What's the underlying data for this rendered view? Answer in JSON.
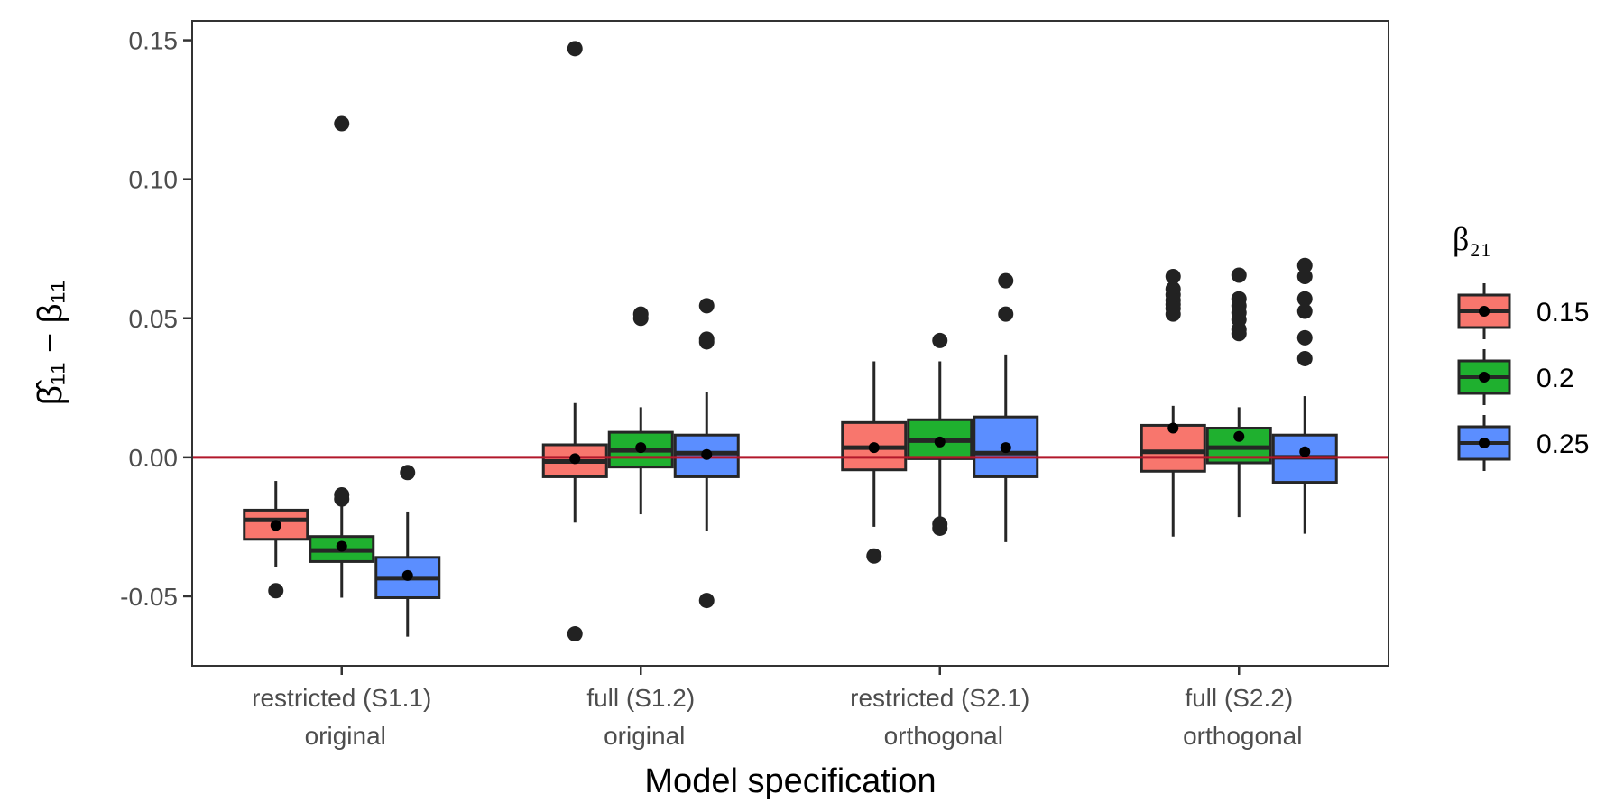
{
  "chart_data": {
    "type": "boxplot",
    "xlabel": "Model specification",
    "ylabel": "β̂₁₁ − β₁₁",
    "ylim": [
      -0.075,
      0.157
    ],
    "yticks": [
      -0.05,
      0.0,
      0.05,
      0.1,
      0.15
    ],
    "ytick_labels": [
      "-0.05",
      "0.00",
      "0.05",
      "0.10",
      "0.15"
    ],
    "categories": [
      {
        "line1": "restricted (S1.1)",
        "line2": "original"
      },
      {
        "line1": "full (S1.2)",
        "line2": "original"
      },
      {
        "line1": "restricted (S2.1)",
        "line2": "orthogonal"
      },
      {
        "line1": "full (S2.2)",
        "line2": "orthogonal"
      }
    ],
    "reference_line": {
      "y": 0.0,
      "color": "#b2182b"
    },
    "grid": false,
    "legend": {
      "title": "β₂₁",
      "placement": "right",
      "entries": [
        {
          "label": "0.15",
          "color": "#f8766d"
        },
        {
          "label": "0.2",
          "color": "#1fb02f"
        },
        {
          "label": "0.25",
          "color": "#5b8eff"
        }
      ]
    },
    "series": [
      {
        "legend_label": "0.15",
        "color": "#f8766d",
        "boxes": [
          {
            "whisker_low": -0.0395,
            "q1": -0.0295,
            "median": -0.0225,
            "q3": -0.019,
            "whisker_high": -0.0085,
            "mean": -0.0245,
            "outliers": [
              -0.048
            ]
          },
          {
            "whisker_low": -0.0235,
            "q1": -0.007,
            "median": -0.0015,
            "q3": 0.0045,
            "whisker_high": 0.0195,
            "mean": -0.0005,
            "outliers": [
              0.147,
              -0.0635
            ]
          },
          {
            "whisker_low": -0.025,
            "q1": -0.0045,
            "median": 0.0035,
            "q3": 0.0125,
            "whisker_high": 0.0345,
            "mean": 0.0035,
            "outliers": [
              -0.0355
            ]
          },
          {
            "whisker_low": -0.0285,
            "q1": -0.005,
            "median": 0.002,
            "q3": 0.0115,
            "whisker_high": 0.0185,
            "mean": 0.0105,
            "outliers": [
              0.065,
              0.0605,
              0.0585,
              0.0565,
              0.055,
              0.0535,
              0.0515
            ]
          }
        ]
      },
      {
        "legend_label": "0.2",
        "color": "#1fb02f",
        "boxes": [
          {
            "whisker_low": -0.0505,
            "q1": -0.0375,
            "median": -0.0335,
            "q3": -0.0285,
            "whisker_high": -0.0175,
            "mean": -0.032,
            "outliers": [
              0.12,
              -0.0135,
              -0.015
            ]
          },
          {
            "whisker_low": -0.0205,
            "q1": -0.0035,
            "median": 0.0025,
            "q3": 0.009,
            "whisker_high": 0.018,
            "mean": 0.0035,
            "outliers": [
              0.0515,
              0.05
            ]
          },
          {
            "whisker_low": -0.023,
            "q1": -0.0005,
            "median": 0.006,
            "q3": 0.0135,
            "whisker_high": 0.0345,
            "mean": 0.0055,
            "outliers": [
              0.042,
              -0.024,
              -0.0255
            ]
          },
          {
            "whisker_low": -0.0215,
            "q1": -0.002,
            "median": 0.0035,
            "q3": 0.0105,
            "whisker_high": 0.018,
            "mean": 0.0075,
            "outliers": [
              0.0655,
              0.057,
              0.0545,
              0.052,
              0.0495,
              0.046,
              0.0445
            ]
          }
        ]
      },
      {
        "legend_label": "0.25",
        "color": "#5b8eff",
        "boxes": [
          {
            "whisker_low": -0.0645,
            "q1": -0.0505,
            "median": -0.0435,
            "q3": -0.036,
            "whisker_high": -0.0195,
            "mean": -0.0425,
            "outliers": [
              -0.0055
            ]
          },
          {
            "whisker_low": -0.0265,
            "q1": -0.007,
            "median": 0.0015,
            "q3": 0.008,
            "whisker_high": 0.0235,
            "mean": 0.001,
            "outliers": [
              0.0545,
              0.0425,
              0.0415,
              -0.0515
            ]
          },
          {
            "whisker_low": -0.0305,
            "q1": -0.007,
            "median": 0.0015,
            "q3": 0.0145,
            "whisker_high": 0.037,
            "mean": 0.0035,
            "outliers": [
              0.0635,
              0.0515
            ]
          },
          {
            "whisker_low": -0.0275,
            "q1": -0.009,
            "median": 0.0,
            "q3": 0.008,
            "whisker_high": 0.022,
            "mean": 0.002,
            "outliers": [
              0.069,
              0.065,
              0.057,
              0.0525,
              0.043,
              0.0355
            ]
          }
        ]
      }
    ]
  }
}
